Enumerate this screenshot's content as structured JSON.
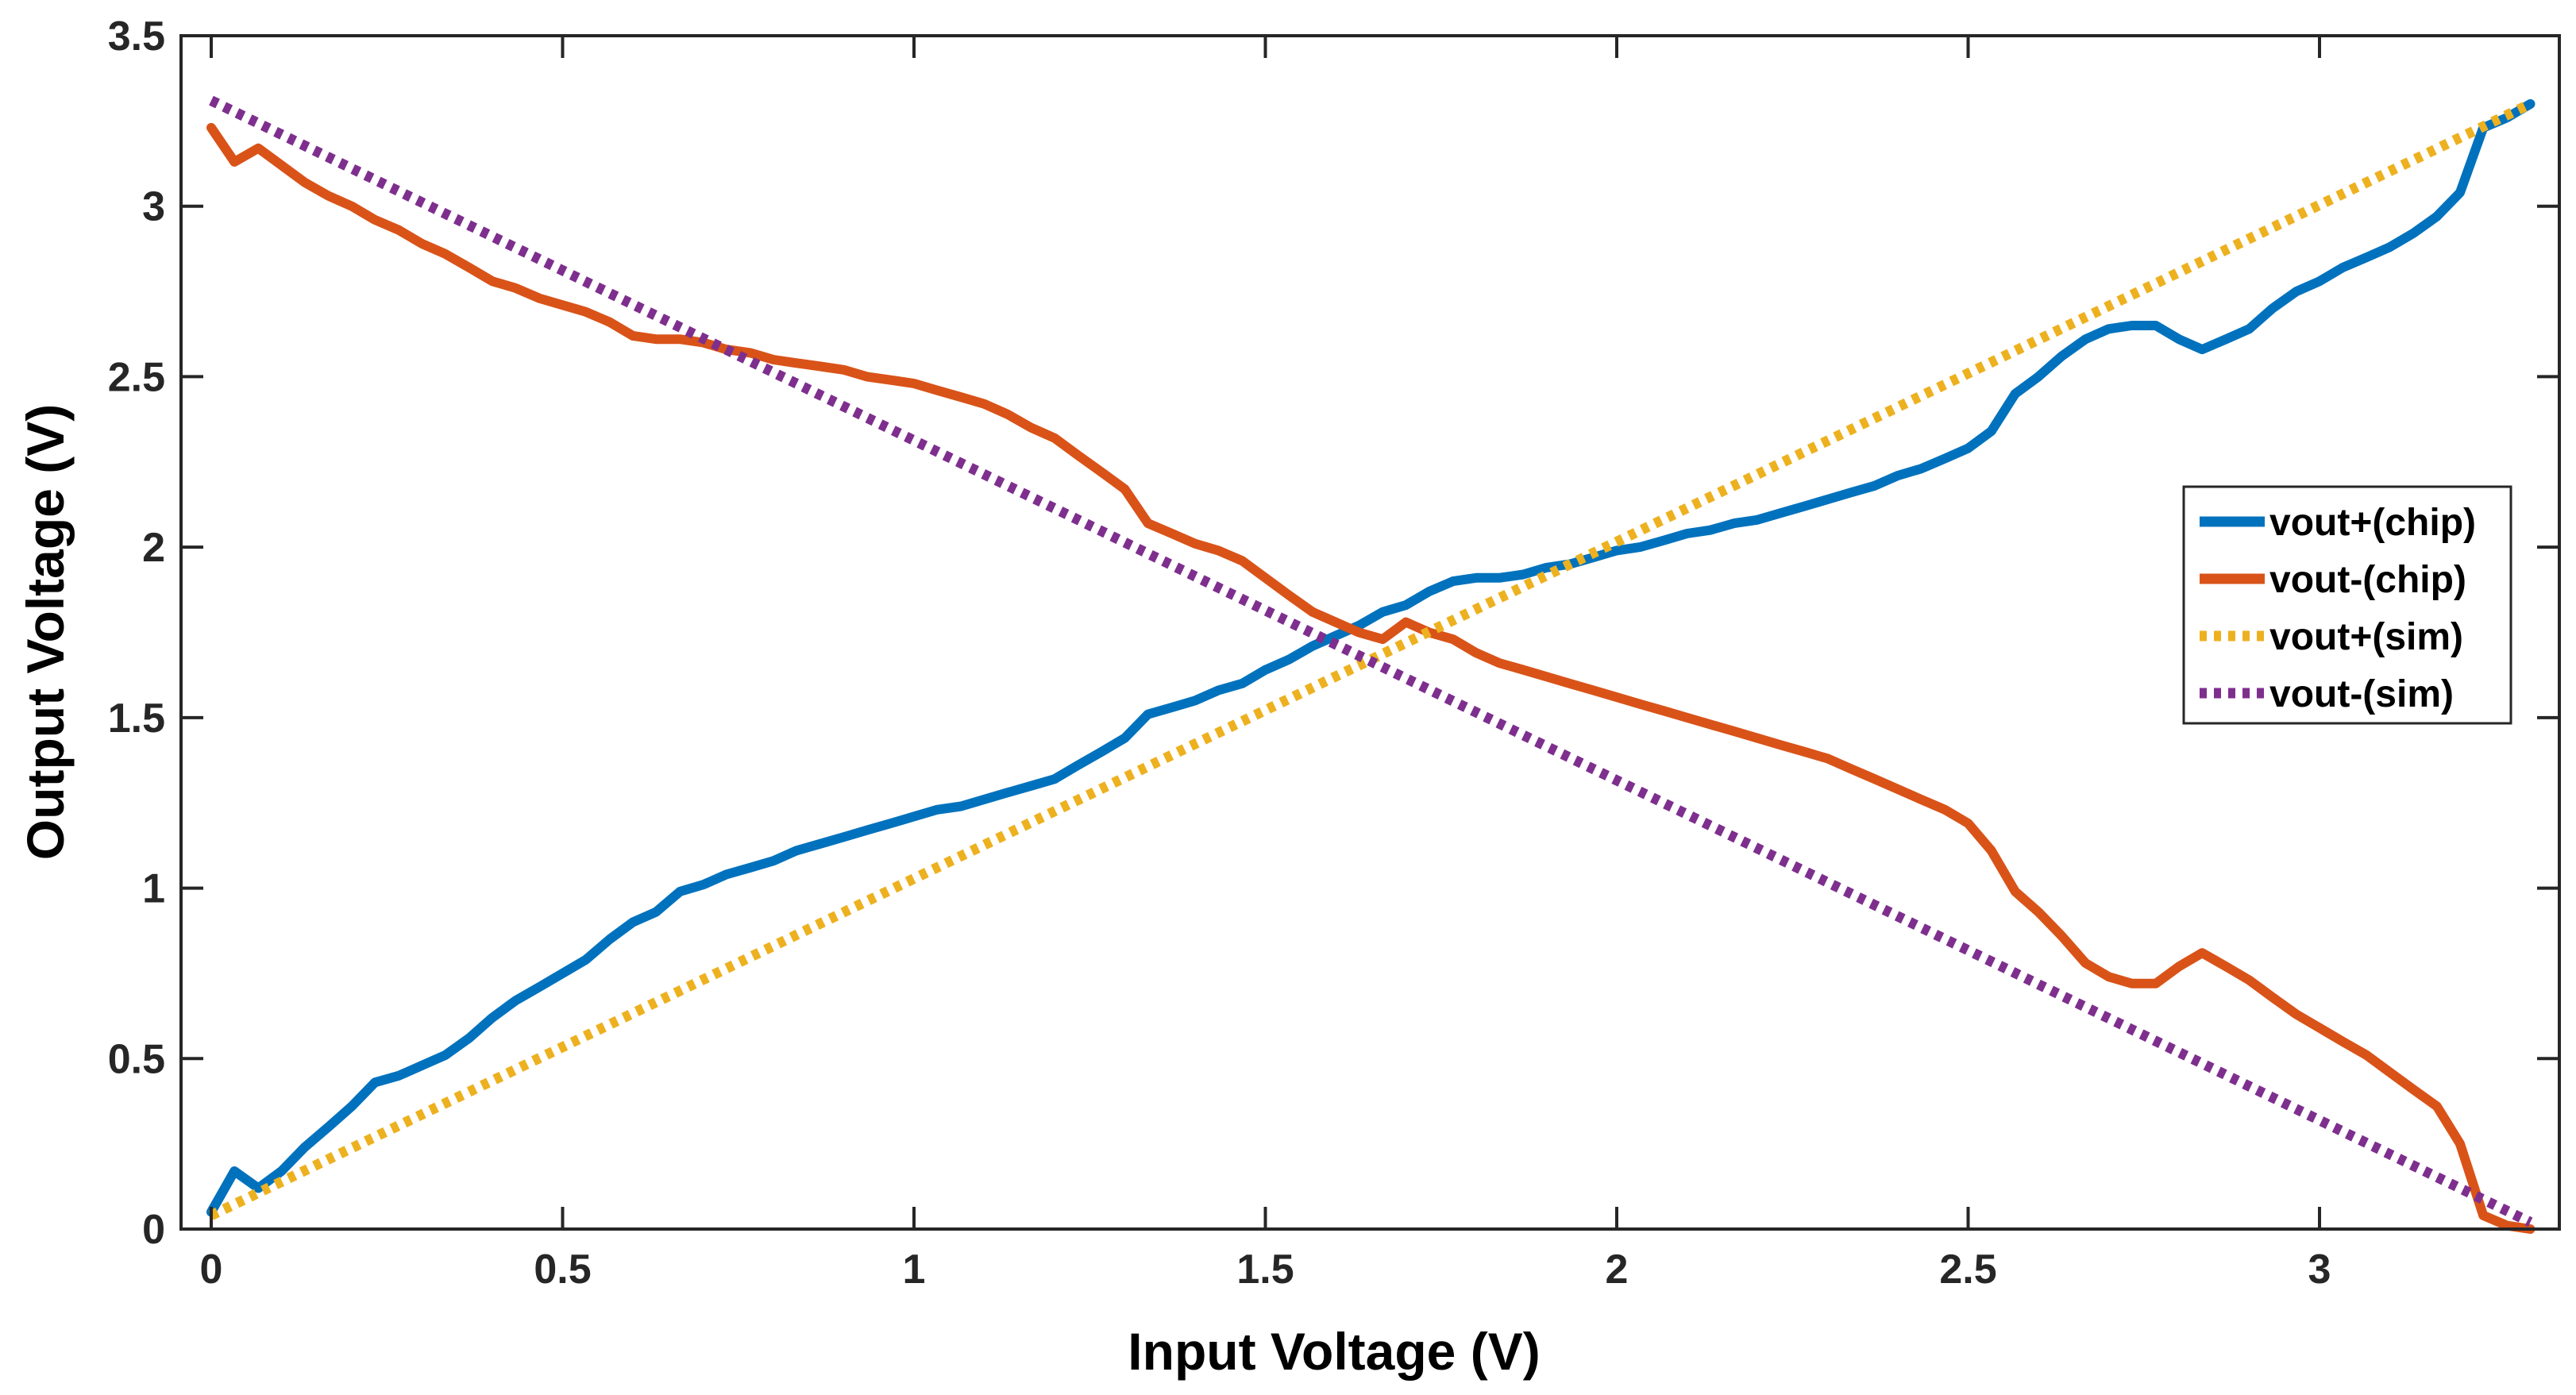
{
  "chart_data": {
    "type": "line",
    "title": "",
    "xlabel": "Input Voltage (V)",
    "ylabel": "Output Voltage (V)",
    "xlim": [
      -0.05,
      3.35
    ],
    "ylim": [
      0,
      3.5
    ],
    "xticks": [
      0,
      0.5,
      1,
      1.5,
      2,
      2.5,
      3
    ],
    "xtick_labels": [
      "0",
      "0.5",
      "1",
      "1.5",
      "2",
      "2.5",
      "3"
    ],
    "yticks": [
      0,
      0.5,
      1,
      1.5,
      2,
      2.5,
      3,
      3.5
    ],
    "ytick_labels": [
      "0",
      "0.5",
      "1",
      "1.5",
      "2",
      "2.5",
      "3",
      "3.5"
    ],
    "grid": false,
    "legend_position": "center-right",
    "series": [
      {
        "name": "vout+(chip)",
        "color": "#0072BD",
        "style": "solid",
        "x": [
          0,
          0.033,
          0.067,
          0.1,
          0.133,
          0.167,
          0.2,
          0.233,
          0.267,
          0.3,
          0.333,
          0.367,
          0.4,
          0.433,
          0.467,
          0.5,
          0.533,
          0.567,
          0.6,
          0.633,
          0.667,
          0.7,
          0.733,
          0.767,
          0.8,
          0.833,
          0.867,
          0.9,
          0.933,
          0.967,
          1.0,
          1.033,
          1.067,
          1.1,
          1.133,
          1.167,
          1.2,
          1.233,
          1.267,
          1.3,
          1.333,
          1.367,
          1.4,
          1.433,
          1.467,
          1.5,
          1.533,
          1.567,
          1.6,
          1.633,
          1.667,
          1.7,
          1.733,
          1.767,
          1.8,
          1.833,
          1.867,
          1.9,
          1.933,
          1.967,
          2.0,
          2.033,
          2.067,
          2.1,
          2.133,
          2.167,
          2.2,
          2.233,
          2.267,
          2.3,
          2.333,
          2.367,
          2.4,
          2.433,
          2.467,
          2.5,
          2.533,
          2.567,
          2.6,
          2.633,
          2.667,
          2.7,
          2.733,
          2.767,
          2.8,
          2.833,
          2.867,
          2.9,
          2.933,
          2.967,
          3.0,
          3.033,
          3.067,
          3.1,
          3.133,
          3.167,
          3.2,
          3.233,
          3.267,
          3.3
        ],
        "y": [
          0.05,
          0.17,
          0.12,
          0.17,
          0.24,
          0.3,
          0.36,
          0.43,
          0.45,
          0.48,
          0.51,
          0.56,
          0.62,
          0.67,
          0.71,
          0.75,
          0.79,
          0.85,
          0.9,
          0.93,
          0.99,
          1.01,
          1.04,
          1.06,
          1.08,
          1.11,
          1.13,
          1.15,
          1.17,
          1.19,
          1.21,
          1.23,
          1.24,
          1.26,
          1.28,
          1.3,
          1.32,
          1.36,
          1.4,
          1.44,
          1.51,
          1.53,
          1.55,
          1.58,
          1.6,
          1.64,
          1.67,
          1.71,
          1.74,
          1.77,
          1.81,
          1.83,
          1.87,
          1.9,
          1.91,
          1.91,
          1.92,
          1.94,
          1.95,
          1.97,
          1.99,
          2.0,
          2.02,
          2.04,
          2.05,
          2.07,
          2.08,
          2.1,
          2.12,
          2.14,
          2.16,
          2.18,
          2.21,
          2.23,
          2.26,
          2.29,
          2.34,
          2.45,
          2.5,
          2.56,
          2.61,
          2.64,
          2.65,
          2.65,
          2.61,
          2.58,
          2.61,
          2.64,
          2.7,
          2.75,
          2.78,
          2.82,
          2.85,
          2.88,
          2.92,
          2.97,
          3.04,
          3.23,
          3.26,
          3.3
        ]
      },
      {
        "name": "vout-(chip)",
        "color": "#D95319",
        "style": "solid",
        "x": [
          0,
          0.033,
          0.067,
          0.1,
          0.133,
          0.167,
          0.2,
          0.233,
          0.267,
          0.3,
          0.333,
          0.367,
          0.4,
          0.433,
          0.467,
          0.5,
          0.533,
          0.567,
          0.6,
          0.633,
          0.667,
          0.7,
          0.733,
          0.767,
          0.8,
          0.833,
          0.867,
          0.9,
          0.933,
          0.967,
          1.0,
          1.033,
          1.067,
          1.1,
          1.133,
          1.167,
          1.2,
          1.233,
          1.267,
          1.3,
          1.333,
          1.367,
          1.4,
          1.433,
          1.467,
          1.5,
          1.533,
          1.567,
          1.6,
          1.633,
          1.667,
          1.7,
          1.733,
          1.767,
          1.8,
          1.833,
          1.867,
          1.9,
          1.933,
          1.967,
          2.0,
          2.033,
          2.067,
          2.1,
          2.133,
          2.167,
          2.2,
          2.233,
          2.267,
          2.3,
          2.333,
          2.367,
          2.4,
          2.433,
          2.467,
          2.5,
          2.533,
          2.567,
          2.6,
          2.633,
          2.667,
          2.7,
          2.733,
          2.767,
          2.8,
          2.833,
          2.867,
          2.9,
          2.933,
          2.967,
          3.0,
          3.033,
          3.067,
          3.1,
          3.133,
          3.167,
          3.2,
          3.233,
          3.267,
          3.3
        ],
        "y": [
          3.23,
          3.13,
          3.17,
          3.12,
          3.07,
          3.03,
          3.0,
          2.96,
          2.93,
          2.89,
          2.86,
          2.82,
          2.78,
          2.76,
          2.73,
          2.71,
          2.69,
          2.66,
          2.62,
          2.61,
          2.61,
          2.6,
          2.58,
          2.57,
          2.55,
          2.54,
          2.53,
          2.52,
          2.5,
          2.49,
          2.48,
          2.46,
          2.44,
          2.42,
          2.39,
          2.35,
          2.32,
          2.27,
          2.22,
          2.17,
          2.07,
          2.04,
          2.01,
          1.99,
          1.96,
          1.91,
          1.86,
          1.81,
          1.78,
          1.75,
          1.73,
          1.78,
          1.75,
          1.73,
          1.69,
          1.66,
          1.64,
          1.62,
          1.6,
          1.58,
          1.56,
          1.54,
          1.52,
          1.5,
          1.48,
          1.46,
          1.44,
          1.42,
          1.4,
          1.38,
          1.35,
          1.32,
          1.29,
          1.26,
          1.23,
          1.19,
          1.11,
          0.99,
          0.93,
          0.86,
          0.78,
          0.74,
          0.72,
          0.72,
          0.77,
          0.81,
          0.77,
          0.73,
          0.68,
          0.63,
          0.59,
          0.55,
          0.51,
          0.46,
          0.41,
          0.36,
          0.25,
          0.04,
          0.01,
          0.0
        ]
      },
      {
        "name": "vout+(sim)",
        "color": "#EDB120",
        "style": "dotted",
        "x": [
          0,
          3.3
        ],
        "y": [
          0.04,
          3.3
        ]
      },
      {
        "name": "vout-(sim)",
        "color": "#7E2F8E",
        "style": "dotted",
        "x": [
          0,
          3.3
        ],
        "y": [
          3.31,
          0.02
        ]
      }
    ]
  }
}
